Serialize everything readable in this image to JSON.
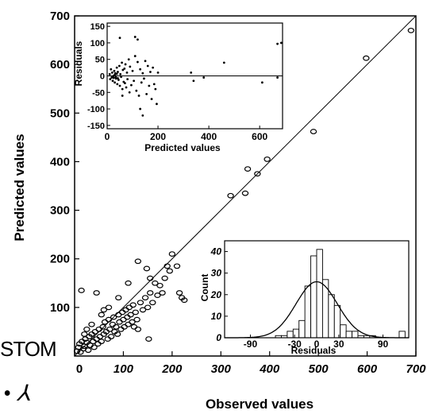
{
  "main": {
    "x_label": "Observed values",
    "y_label": "Predicted values",
    "x_ticks": [
      0,
      100,
      200,
      300,
      400,
      500,
      600,
      700
    ],
    "y_ticks": [
      100,
      200,
      300,
      400,
      500,
      600,
      700
    ]
  },
  "inset_residuals": {
    "x_label": "Predicted values",
    "y_label": "Residuals",
    "x_ticks": [
      0,
      200,
      400,
      600
    ],
    "y_ticks": [
      -150,
      -100,
      -50,
      0,
      50,
      100,
      150
    ]
  },
  "inset_histogram": {
    "x_label": "Residuals",
    "y_label": "Count",
    "x_ticks": [
      -90,
      -30,
      0,
      30,
      90
    ],
    "y_ticks": [
      0,
      10,
      20,
      30,
      40
    ]
  },
  "stray_text": {
    "stom": "STOM",
    "signature": "• ⅄"
  },
  "chart_data": [
    {
      "type": "scatter",
      "xlabel": "Observed values",
      "ylabel": "Predicted values",
      "xlim": [
        0,
        700
      ],
      "ylim": [
        0,
        700
      ],
      "identity_line": true,
      "points": [
        [
          5,
          10
        ],
        [
          8,
          18
        ],
        [
          10,
          25
        ],
        [
          12,
          8
        ],
        [
          15,
          30
        ],
        [
          18,
          15
        ],
        [
          20,
          20
        ],
        [
          22,
          35
        ],
        [
          25,
          28
        ],
        [
          28,
          12
        ],
        [
          30,
          40
        ],
        [
          32,
          22
        ],
        [
          35,
          45
        ],
        [
          38,
          30
        ],
        [
          40,
          18
        ],
        [
          42,
          50
        ],
        [
          45,
          35
        ],
        [
          48,
          25
        ],
        [
          50,
          55
        ],
        [
          52,
          40
        ],
        [
          55,
          30
        ],
        [
          58,
          60
        ],
        [
          60,
          45
        ],
        [
          62,
          70
        ],
        [
          65,
          50
        ],
        [
          68,
          35
        ],
        [
          70,
          75
        ],
        [
          72,
          55
        ],
        [
          75,
          40
        ],
        [
          78,
          65
        ],
        [
          80,
          80
        ],
        [
          82,
          50
        ],
        [
          85,
          60
        ],
        [
          88,
          45
        ],
        [
          90,
          85
        ],
        [
          92,
          70
        ],
        [
          95,
          55
        ],
        [
          98,
          90
        ],
        [
          100,
          75
        ],
        [
          102,
          60
        ],
        [
          105,
          95
        ],
        [
          108,
          80
        ],
        [
          110,
          65
        ],
        [
          112,
          100
        ],
        [
          115,
          85
        ],
        [
          118,
          70
        ],
        [
          120,
          105
        ],
        [
          122,
          60
        ],
        [
          125,
          90
        ],
        [
          128,
          75
        ],
        [
          130,
          55
        ],
        [
          135,
          110
        ],
        [
          140,
          95
        ],
        [
          145,
          120
        ],
        [
          150,
          100
        ],
        [
          152,
          35
        ],
        [
          155,
          130
        ],
        [
          160,
          110
        ],
        [
          165,
          150
        ],
        [
          170,
          125
        ],
        [
          175,
          145
        ],
        [
          180,
          130
        ],
        [
          185,
          160
        ],
        [
          190,
          185
        ],
        [
          195,
          175
        ],
        [
          200,
          210
        ],
        [
          210,
          185
        ],
        [
          215,
          130
        ],
        [
          220,
          120
        ],
        [
          225,
          115
        ],
        [
          14,
          135
        ],
        [
          45,
          130
        ],
        [
          130,
          195
        ],
        [
          148,
          180
        ],
        [
          155,
          160
        ],
        [
          110,
          150
        ],
        [
          90,
          120
        ],
        [
          70,
          100
        ],
        [
          55,
          85
        ],
        [
          35,
          65
        ],
        [
          20,
          45
        ],
        [
          25,
          55
        ],
        [
          60,
          95
        ],
        [
          320,
          330
        ],
        [
          350,
          335
        ],
        [
          355,
          385
        ],
        [
          375,
          375
        ],
        [
          395,
          405
        ],
        [
          490,
          462
        ],
        [
          598,
          613
        ],
        [
          690,
          670
        ]
      ]
    },
    {
      "type": "scatter",
      "title": "",
      "xlabel": "Predicted values",
      "ylabel": "Residuals",
      "xlim": [
        0,
        690
      ],
      "ylim": [
        -160,
        160
      ],
      "zero_line": true,
      "points": [
        [
          10,
          5
        ],
        [
          12,
          -10
        ],
        [
          15,
          20
        ],
        [
          18,
          -5
        ],
        [
          20,
          10
        ],
        [
          22,
          -15
        ],
        [
          25,
          0
        ],
        [
          28,
          15
        ],
        [
          30,
          -20
        ],
        [
          32,
          8
        ],
        [
          35,
          -8
        ],
        [
          38,
          25
        ],
        [
          40,
          -25
        ],
        [
          42,
          12
        ],
        [
          45,
          -12
        ],
        [
          48,
          30
        ],
        [
          50,
          -30
        ],
        [
          52,
          5
        ],
        [
          55,
          -3
        ],
        [
          58,
          40
        ],
        [
          60,
          -40
        ],
        [
          62,
          18
        ],
        [
          65,
          -18
        ],
        [
          68,
          22
        ],
        [
          70,
          -22
        ],
        [
          72,
          35
        ],
        [
          75,
          -35
        ],
        [
          78,
          10
        ],
        [
          80,
          -10
        ],
        [
          85,
          50
        ],
        [
          88,
          -50
        ],
        [
          90,
          28
        ],
        [
          95,
          -28
        ],
        [
          100,
          15
        ],
        [
          105,
          -15
        ],
        [
          110,
          60
        ],
        [
          115,
          -45
        ],
        [
          120,
          42
        ],
        [
          125,
          -60
        ],
        [
          130,
          20
        ],
        [
          135,
          -20
        ],
        [
          140,
          8
        ],
        [
          145,
          -8
        ],
        [
          150,
          45
        ],
        [
          155,
          -55
        ],
        [
          160,
          30
        ],
        [
          165,
          -30
        ],
        [
          170,
          12
        ],
        [
          175,
          -70
        ],
        [
          180,
          25
        ],
        [
          185,
          -25
        ],
        [
          190,
          -40
        ],
        [
          195,
          -85
        ],
        [
          200,
          10
        ],
        [
          50,
          115
        ],
        [
          120,
          110
        ],
        [
          110,
          118
        ],
        [
          60,
          -60
        ],
        [
          140,
          -120
        ],
        [
          130,
          -100
        ],
        [
          330,
          10
        ],
        [
          340,
          -15
        ],
        [
          380,
          -5
        ],
        [
          460,
          40
        ],
        [
          610,
          -20
        ],
        [
          670,
          -5
        ],
        [
          670,
          97
        ],
        [
          685,
          100
        ],
        [
          22,
          -2
        ],
        [
          26,
          -6
        ],
        [
          30,
          3
        ],
        [
          34,
          -4
        ],
        [
          38,
          6
        ],
        [
          42,
          -7
        ]
      ]
    },
    {
      "type": "bar",
      "subtype": "histogram_with_normal_curve",
      "xlabel": "Residuals",
      "ylabel": "Count",
      "xlim": [
        -125,
        125
      ],
      "ylim": [
        0,
        45
      ],
      "bin_width": 8,
      "bin_starts": [
        -120,
        -112,
        -104,
        -96,
        -88,
        -80,
        -72,
        -64,
        -56,
        -48,
        -40,
        -32,
        -24,
        -16,
        -8,
        0,
        8,
        16,
        24,
        32,
        40,
        48,
        56,
        64,
        72,
        80,
        88,
        96,
        104,
        112
      ],
      "values": [
        0,
        0,
        0,
        0,
        0,
        0,
        0,
        0,
        1,
        1,
        3,
        4,
        8,
        24,
        38,
        41,
        27,
        20,
        15,
        6,
        3,
        3,
        1,
        1,
        1,
        0,
        0,
        0,
        0,
        3
      ],
      "normal_curve": {
        "mean": 0,
        "sd": 28,
        "peak": 26
      }
    }
  ]
}
